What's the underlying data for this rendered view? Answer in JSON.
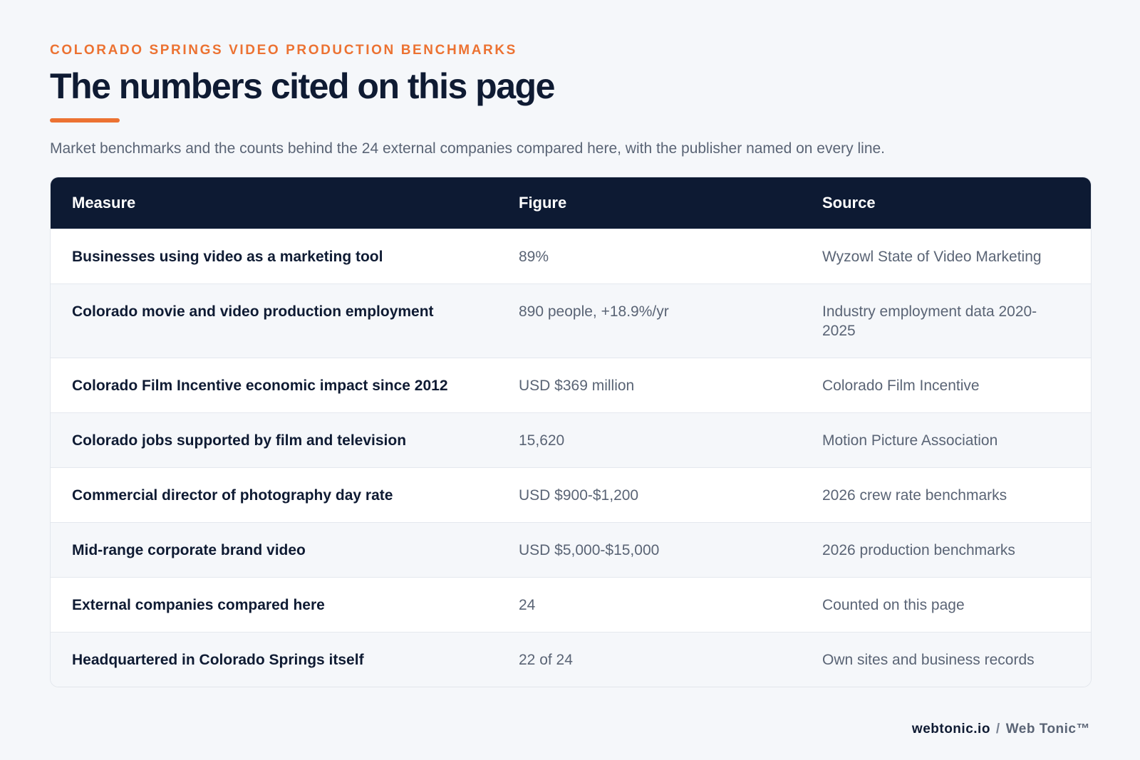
{
  "header": {
    "eyebrow": "COLORADO SPRINGS VIDEO PRODUCTION BENCHMARKS",
    "title": "The numbers cited on this page",
    "subtitle": "Market benchmarks and the counts behind the 24 external companies compared here, with the publisher named on every line."
  },
  "table": {
    "columns": [
      "Measure",
      "Figure",
      "Source"
    ],
    "rows": [
      [
        "Businesses using video as a marketing tool",
        "89%",
        "Wyzowl State of Video Marketing"
      ],
      [
        "Colorado movie and video production employment",
        "890 people, +18.9%/yr",
        "Industry employment data 2020-2025"
      ],
      [
        "Colorado Film Incentive economic impact since 2012",
        "USD $369 million",
        "Colorado Film Incentive"
      ],
      [
        "Colorado jobs supported by film and television",
        "15,620",
        "Motion Picture Association"
      ],
      [
        "Commercial director of photography day rate",
        "USD $900-$1,200",
        "2026 crew rate benchmarks"
      ],
      [
        "Mid-range corporate brand video",
        "USD $5,000-$15,000",
        "2026 production benchmarks"
      ],
      [
        "External companies compared here",
        "24",
        "Counted on this page"
      ],
      [
        "Headquartered in Colorado Springs itself",
        "22 of 24",
        "Own sites and business records"
      ]
    ]
  },
  "footer": {
    "site": "webtonic.io",
    "separator": "/",
    "brand": "Web Tonic™"
  }
}
